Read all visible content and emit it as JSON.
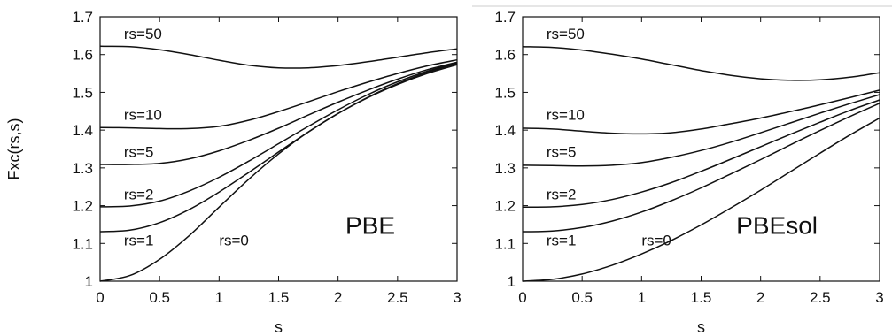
{
  "chart_data": [
    {
      "type": "line",
      "annotation": "PBE",
      "xlabel": "s",
      "ylabel": "Fxc(rs,s)",
      "xlim": [
        0,
        3
      ],
      "ylim": [
        1,
        1.7
      ],
      "xticks": [
        "0",
        "0.5",
        "1",
        "1.5",
        "2",
        "2.5",
        "3"
      ],
      "yticks": [
        "1",
        "1.1",
        "1.2",
        "1.3",
        "1.4",
        "1.5",
        "1.6",
        "1.7"
      ],
      "x": [
        0,
        0.25,
        0.5,
        0.75,
        1.0,
        1.25,
        1.5,
        1.75,
        2.0,
        2.25,
        2.5,
        2.75,
        3.0
      ],
      "series": [
        {
          "name": "rs=50",
          "values": [
            1.622,
            1.621,
            1.613,
            1.6,
            1.585,
            1.572,
            1.565,
            1.565,
            1.571,
            1.581,
            1.593,
            1.605,
            1.615
          ]
        },
        {
          "name": "rs=10",
          "values": [
            1.407,
            1.406,
            1.404,
            1.404,
            1.41,
            1.426,
            1.449,
            1.475,
            1.502,
            1.527,
            1.55,
            1.57,
            1.586
          ]
        },
        {
          "name": "rs=5",
          "values": [
            1.309,
            1.309,
            1.312,
            1.324,
            1.345,
            1.373,
            1.405,
            1.44,
            1.474,
            1.506,
            1.535,
            1.56,
            1.58
          ]
        },
        {
          "name": "rs=2",
          "values": [
            1.197,
            1.199,
            1.212,
            1.239,
            1.275,
            1.318,
            1.364,
            1.41,
            1.454,
            1.494,
            1.528,
            1.556,
            1.578
          ]
        },
        {
          "name": "rs=1",
          "values": [
            1.131,
            1.135,
            1.155,
            1.19,
            1.236,
            1.288,
            1.342,
            1.395,
            1.444,
            1.487,
            1.523,
            1.553,
            1.576
          ]
        },
        {
          "name": "rs=0",
          "values": [
            1.0,
            1.015,
            1.058,
            1.121,
            1.196,
            1.27,
            1.337,
            1.395,
            1.444,
            1.486,
            1.521,
            1.55,
            1.573
          ]
        }
      ],
      "labels": [
        {
          "text": "rs=50",
          "x": 0.2,
          "y": 1.642
        },
        {
          "text": "rs=10",
          "x": 0.2,
          "y": 1.427
        },
        {
          "text": "rs=5",
          "x": 0.2,
          "y": 1.329
        },
        {
          "text": "rs=2",
          "x": 0.2,
          "y": 1.217
        },
        {
          "text": "rs=1",
          "x": 0.2,
          "y": 1.095
        },
        {
          "text": "rs=0",
          "x": 1.0,
          "y": 1.095
        }
      ]
    },
    {
      "type": "line",
      "annotation": "PBEsol",
      "xlabel": "s",
      "ylabel": "",
      "xlim": [
        0,
        3
      ],
      "ylim": [
        1,
        1.7
      ],
      "xticks": [
        "0",
        "0.5",
        "1",
        "1.5",
        "2",
        "2.5",
        "3"
      ],
      "yticks": [
        "1",
        "1.1",
        "1.2",
        "1.3",
        "1.4",
        "1.5",
        "1.6",
        "1.7"
      ],
      "x": [
        0,
        0.25,
        0.5,
        0.75,
        1.0,
        1.25,
        1.5,
        1.75,
        2.0,
        2.25,
        2.5,
        2.75,
        3.0
      ],
      "series": [
        {
          "name": "rs=50",
          "values": [
            1.621,
            1.619,
            1.612,
            1.601,
            1.588,
            1.573,
            1.558,
            1.545,
            1.536,
            1.532,
            1.533,
            1.54,
            1.552
          ]
        },
        {
          "name": "rs=10",
          "values": [
            1.405,
            1.403,
            1.397,
            1.392,
            1.39,
            1.393,
            1.403,
            1.417,
            1.432,
            1.449,
            1.467,
            1.486,
            1.506
          ]
        },
        {
          "name": "rs=5",
          "values": [
            1.307,
            1.306,
            1.305,
            1.307,
            1.314,
            1.328,
            1.346,
            1.368,
            1.393,
            1.419,
            1.445,
            1.47,
            1.494
          ]
        },
        {
          "name": "rs=2",
          "values": [
            1.196,
            1.197,
            1.203,
            1.216,
            1.236,
            1.261,
            1.291,
            1.323,
            1.356,
            1.389,
            1.421,
            1.452,
            1.48
          ]
        },
        {
          "name": "rs=1",
          "values": [
            1.131,
            1.133,
            1.142,
            1.159,
            1.183,
            1.213,
            1.247,
            1.284,
            1.322,
            1.361,
            1.399,
            1.436,
            1.471
          ]
        },
        {
          "name": "rs=0",
          "values": [
            1.0,
            1.005,
            1.019,
            1.042,
            1.072,
            1.108,
            1.149,
            1.194,
            1.241,
            1.29,
            1.339,
            1.387,
            1.432
          ]
        }
      ],
      "labels": [
        {
          "text": "rs=50",
          "x": 0.2,
          "y": 1.642
        },
        {
          "text": "rs=10",
          "x": 0.2,
          "y": 1.427
        },
        {
          "text": "rs=5",
          "x": 0.2,
          "y": 1.329
        },
        {
          "text": "rs=2",
          "x": 0.2,
          "y": 1.217
        },
        {
          "text": "rs=1",
          "x": 0.2,
          "y": 1.095
        },
        {
          "text": "rs=0",
          "x": 1.0,
          "y": 1.095
        }
      ]
    }
  ]
}
